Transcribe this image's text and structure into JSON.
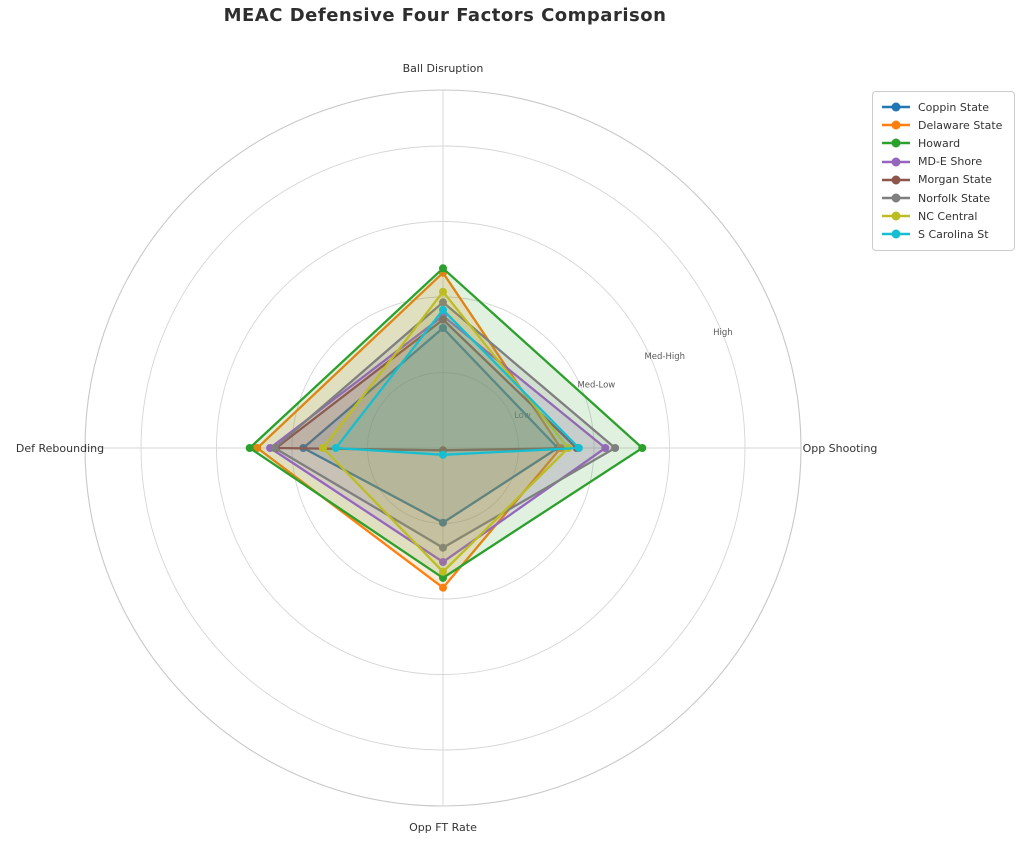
{
  "title": "MEAC Defensive Four Factors Comparison",
  "chart_data": {
    "type": "radar",
    "categories": [
      "Ball Disruption",
      "Opp Shooting",
      "Opp FT Rate",
      "Def Rebounding"
    ],
    "radial_ticks": [
      {
        "label": "Low",
        "value": 1
      },
      {
        "label": "Med-Low",
        "value": 2
      },
      {
        "label": "Med-High",
        "value": 3
      },
      {
        "label": "High",
        "value": 4
      }
    ],
    "r_min": 0,
    "r_max": 4.74,
    "grid": true,
    "legend_position": "upper right",
    "grid_color": "#d6d6d6",
    "spine_color": "#c8c8c8",
    "tick_label_color": "#5a5a5a",
    "axis_label_color": "#333333",
    "fill_opacity": 0.15,
    "series": [
      {
        "name": "Coppin State",
        "color": "#1f77b4",
        "values": [
          1.59,
          1.52,
          0.99,
          1.85
        ]
      },
      {
        "name": "Delaware State",
        "color": "#ff7f0e",
        "values": [
          2.32,
          1.56,
          1.85,
          2.46
        ]
      },
      {
        "name": "Howard",
        "color": "#2ca02c",
        "values": [
          2.38,
          2.64,
          1.72,
          2.56
        ]
      },
      {
        "name": "MD-E Shore",
        "color": "#9467bd",
        "values": [
          1.75,
          2.15,
          1.51,
          2.29
        ]
      },
      {
        "name": "Morgan State",
        "color": "#8c564b",
        "values": [
          1.7,
          1.77,
          0.03,
          2.21
        ]
      },
      {
        "name": "Norfolk State",
        "color": "#7f7f7f",
        "values": [
          1.93,
          2.28,
          1.32,
          2.23
        ]
      },
      {
        "name": "NC Central",
        "color": "#bcbd22",
        "values": [
          2.07,
          1.66,
          1.64,
          1.59
        ]
      },
      {
        "name": "S Carolina St",
        "color": "#17becf",
        "values": [
          1.83,
          1.8,
          0.09,
          1.42
        ]
      }
    ]
  }
}
